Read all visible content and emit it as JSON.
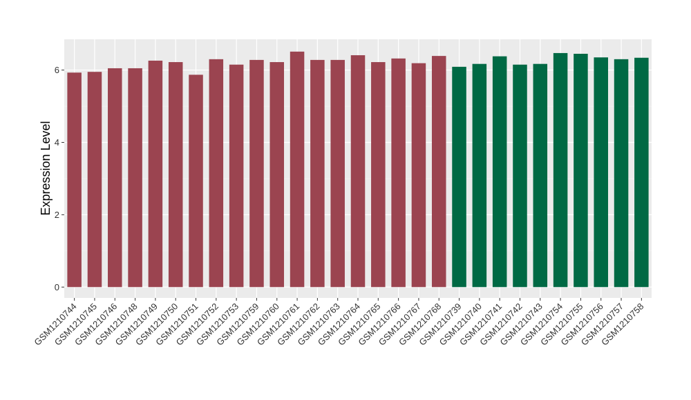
{
  "chart_data": {
    "type": "bar",
    "title": "",
    "xlabel": "",
    "ylabel": "Expression Level",
    "ylim": [
      -0.3,
      6.85
    ],
    "yticks": [
      0,
      2,
      4,
      6
    ],
    "grid": true,
    "legend": "none",
    "background_color": "#ebebeb",
    "categories": [
      "GSM1210744",
      "GSM1210745",
      "GSM1210746",
      "GSM1210748",
      "GSM1210749",
      "GSM1210750",
      "GSM1210751",
      "GSM1210752",
      "GSM1210753",
      "GSM1210759",
      "GSM1210760",
      "GSM1210761",
      "GSM1210762",
      "GSM1210763",
      "GSM1210764",
      "GSM1210765",
      "GSM1210766",
      "GSM1210767",
      "GSM1210768",
      "GSM1210739",
      "GSM1210740",
      "GSM1210741",
      "GSM1210742",
      "GSM1210743",
      "GSM1210754",
      "GSM1210755",
      "GSM1210756",
      "GSM1210757",
      "GSM1210758"
    ],
    "values": [
      5.93,
      5.95,
      6.05,
      6.05,
      6.26,
      6.22,
      5.87,
      6.3,
      6.15,
      6.28,
      6.22,
      6.51,
      6.28,
      6.28,
      6.41,
      6.22,
      6.32,
      6.19,
      6.39,
      6.09,
      6.17,
      6.38,
      6.15,
      6.17,
      6.47,
      6.45,
      6.35,
      6.3,
      6.34
    ],
    "bar_colors": [
      "#9b4450",
      "#9b4450",
      "#9b4450",
      "#9b4450",
      "#9b4450",
      "#9b4450",
      "#9b4450",
      "#9b4450",
      "#9b4450",
      "#9b4450",
      "#9b4450",
      "#9b4450",
      "#9b4450",
      "#9b4450",
      "#9b4450",
      "#9b4450",
      "#9b4450",
      "#9b4450",
      "#9b4450",
      "#006944",
      "#006944",
      "#006944",
      "#006944",
      "#006944",
      "#006944",
      "#006944",
      "#006944",
      "#006944",
      "#006944"
    ]
  }
}
